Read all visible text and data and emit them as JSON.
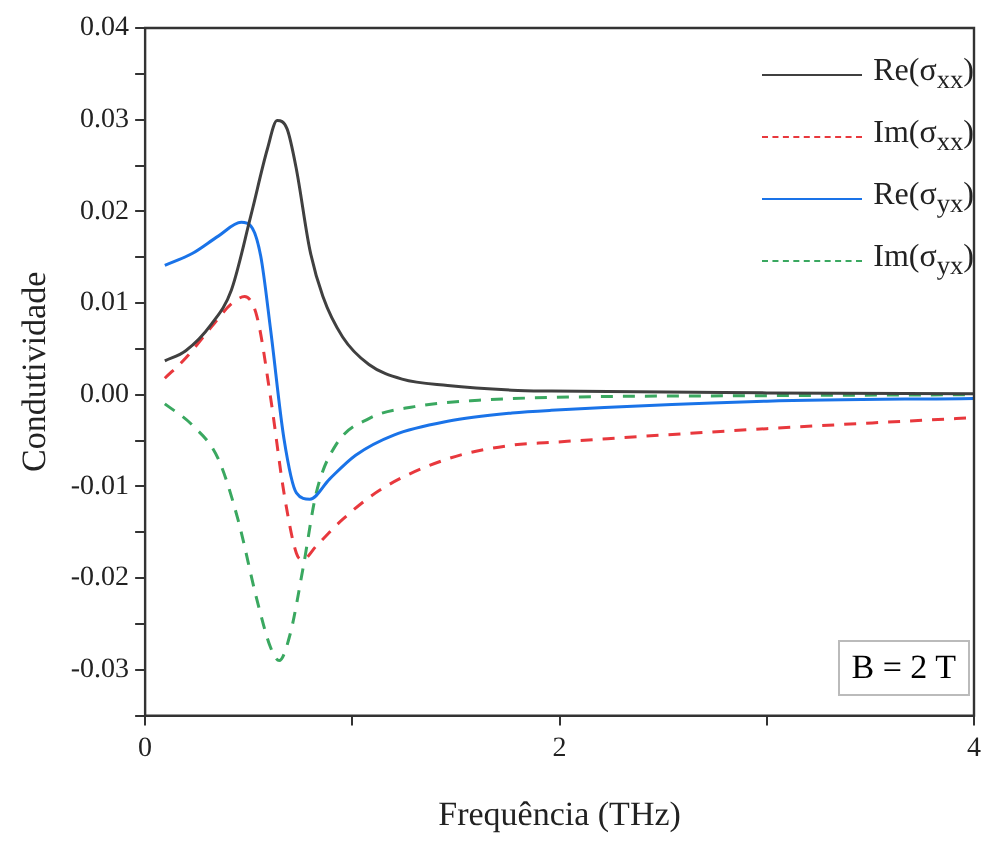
{
  "chart_data": {
    "type": "line",
    "xlabel": "Frequência (THz)",
    "ylabel": "Condutividade",
    "xlim": [
      0,
      4
    ],
    "ylim": [
      -0.035,
      0.04
    ],
    "xticks": [
      0,
      {
        "value": 1,
        "label": null
      },
      2,
      {
        "value": 3,
        "label": null
      },
      4
    ],
    "yticks": [
      {
        "value": -0.035,
        "label": null
      },
      {
        "value": -0.03,
        "label": "-0.03"
      },
      {
        "value": -0.025,
        "label": null
      },
      {
        "value": -0.02,
        "label": "-0.02"
      },
      {
        "value": -0.015,
        "label": null
      },
      {
        "value": -0.01,
        "label": "-0.01"
      },
      {
        "value": -0.005,
        "label": null
      },
      {
        "value": 0,
        "label": "0.00"
      },
      {
        "value": 0.005,
        "label": null
      },
      {
        "value": 0.01,
        "label": "0.01"
      },
      {
        "value": 0.015,
        "label": null
      },
      {
        "value": 0.02,
        "label": "0.02"
      },
      {
        "value": 0.025,
        "label": null
      },
      {
        "value": 0.03,
        "label": "0.03"
      },
      {
        "value": 0.035,
        "label": null
      },
      {
        "value": 0.04,
        "label": "0.04"
      }
    ],
    "grid": false,
    "legend": "top right",
    "marker": "none",
    "annotations": [
      "B = 2 T"
    ],
    "series": [
      {
        "name": "Re(σ$_{xx}$)",
        "color": "#404040",
        "line_style": "solid",
        "x": [
          0.095,
          0.196,
          0.32,
          0.416,
          0.51,
          0.59,
          0.637,
          0.685,
          0.73,
          0.795,
          0.858,
          0.953,
          1.08,
          1.24,
          1.46,
          1.77,
          1.96,
          3,
          4
        ],
        "values": [
          0.0037,
          0.0048,
          0.0077,
          0.0114,
          0.0195,
          0.0268,
          0.0299,
          0.029,
          0.0246,
          0.0158,
          0.0107,
          0.0063,
          0.0033,
          0.0017,
          0.001,
          0.0005,
          0.0004,
          0.0002,
          0.0001
        ]
      },
      {
        "name": "Im(σ$_{xx}$)",
        "color": "#e8383d",
        "line_style": "dashed",
        "x": [
          0.095,
          0.196,
          0.32,
          0.416,
          0.48,
          0.54,
          0.606,
          0.67,
          0.73,
          0.76,
          0.826,
          0.953,
          1.14,
          1.46,
          1.77,
          1.96,
          3,
          4
        ],
        "values": [
          0.0018,
          0.004,
          0.0074,
          0.0099,
          0.0107,
          0.0085,
          -0.0004,
          -0.0107,
          -0.0173,
          -0.018,
          -0.0165,
          -0.0136,
          -0.0103,
          -0.007,
          -0.0055,
          -0.0052,
          -0.0037,
          -0.0025
        ]
      },
      {
        "name": "Re(σ$_{yx}$)",
        "color": "#1a73e8",
        "line_style": "solid",
        "x": [
          0.095,
          0.227,
          0.353,
          0.464,
          0.51,
          0.558,
          0.606,
          0.67,
          0.73,
          0.795,
          0.89,
          1.016,
          1.2,
          1.46,
          1.77,
          1.96,
          3,
          4
        ],
        "values": [
          0.0141,
          0.0154,
          0.0173,
          0.0188,
          0.0184,
          0.0151,
          0.007,
          -0.0048,
          -0.0107,
          -0.0114,
          -0.0092,
          -0.0066,
          -0.0044,
          -0.0029,
          -0.002,
          -0.0017,
          -0.0007,
          -0.0004
        ]
      },
      {
        "name": "Im(σ$_{yx}$)",
        "color": "#3aa860",
        "line_style": "dashed",
        "x": [
          0.095,
          0.227,
          0.353,
          0.448,
          0.54,
          0.606,
          0.647,
          0.7,
          0.763,
          0.826,
          0.92,
          1.08,
          1.3,
          1.61,
          1.96,
          3,
          4
        ],
        "values": [
          -0.001,
          -0.0033,
          -0.007,
          -0.0136,
          -0.0224,
          -0.0276,
          -0.029,
          -0.0261,
          -0.0188,
          -0.0107,
          -0.0055,
          -0.0026,
          -0.0013,
          -0.0006,
          -0.0003,
          -0.0001,
          0
        ]
      }
    ]
  }
}
